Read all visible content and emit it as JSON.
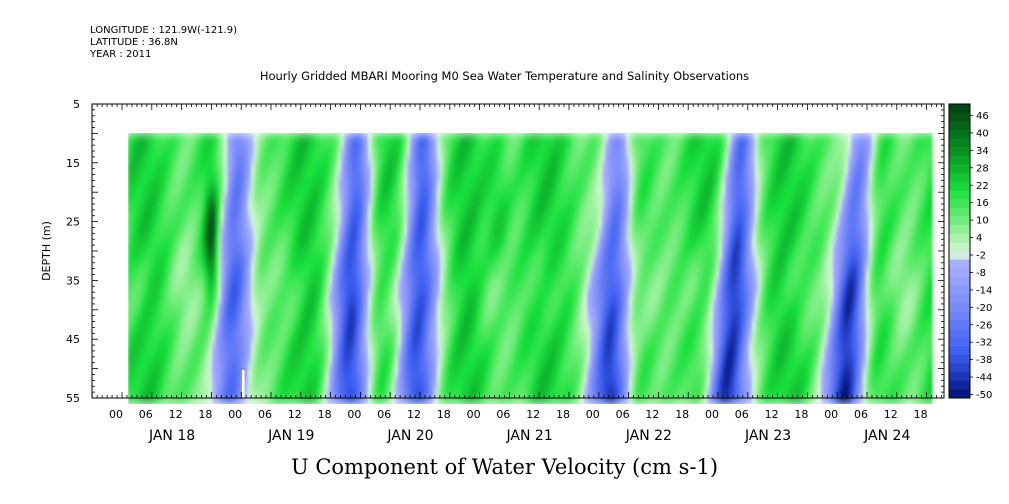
{
  "header": {
    "longitude": "LONGITUDE : 121.9W(-121.9)",
    "latitude": "LATITUDE : 36.8N",
    "year": "YEAR : 2011"
  },
  "chart_data": {
    "type": "heatmap",
    "title": "Hourly Gridded MBARI Mooring M0 Sea Water Temperature and Salinity Observations",
    "subtitle": "U Component of Water Velocity (cm s-1)",
    "ylabel": "DEPTH (m)",
    "ylim": [
      5,
      55
    ],
    "y_inverted": true,
    "y_ticks": [
      5,
      15,
      25,
      35,
      45,
      55
    ],
    "x_hour_labels": [
      "00",
      "06",
      "12",
      "18",
      "00",
      "06",
      "12",
      "18",
      "00",
      "06",
      "12",
      "18",
      "00",
      "06",
      "12",
      "18",
      "00",
      "06",
      "12",
      "18",
      "00",
      "06",
      "12",
      "18",
      "00",
      "06",
      "12",
      "18"
    ],
    "x_day_labels": [
      "JAN 18",
      "JAN 19",
      "JAN 20",
      "JAN 21",
      "JAN 22",
      "JAN 23",
      "JAN 24"
    ],
    "data_depth_range": [
      10,
      55
    ],
    "colorbar_labels": [
      "46",
      "40",
      "34",
      "28",
      "22",
      "16",
      "10",
      "4",
      "-2",
      "-8",
      "-14",
      "-20",
      "-26",
      "-32",
      "-38",
      "-44",
      "-50"
    ],
    "colorbar_range": [
      -50,
      52
    ],
    "colors": {
      "strong_positive": "#003d12",
      "positive": "#18e03c",
      "weak_positive": "#b8f5b8",
      "weak_negative": "#aab0ff",
      "negative": "#3a5cf0",
      "strong_negative": "#000f7a"
    },
    "features": [
      {
        "day_offset": 0.5,
        "sign": "positive",
        "note": "dark green core near 28 m"
      },
      {
        "day_offset": 2.5,
        "sign": "negative"
      },
      {
        "day_offset": 3.1,
        "sign": "positive"
      },
      {
        "day_offset": 4.1,
        "sign": "negative"
      },
      {
        "day_offset": 5.1,
        "sign": "negative"
      },
      {
        "day_offset": 6.1,
        "sign": "negative"
      }
    ]
  }
}
